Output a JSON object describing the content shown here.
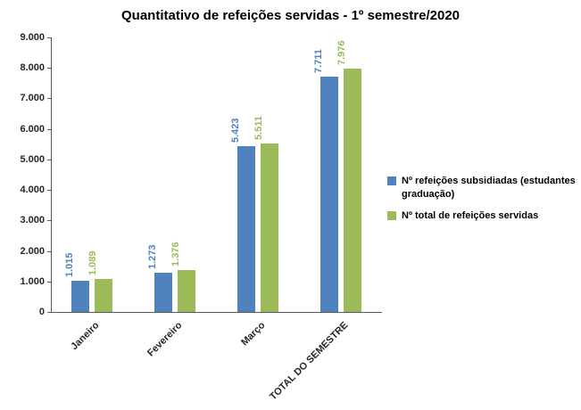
{
  "chart_data": {
    "type": "bar",
    "title": "Quantitativo de refeições servidas - 1º semestre/2020",
    "categories": [
      "Janeiro",
      "Fevereiro",
      "Março",
      "TOTAL DO SEMESTRE"
    ],
    "series": [
      {
        "name": "Nº refeições subsidiadas (estudantes graduação)",
        "color": "#4f81bd",
        "values": [
          1015,
          1273,
          5423,
          7711
        ],
        "labels": [
          "1.015",
          "1.273",
          "5.423",
          "7.711"
        ]
      },
      {
        "name": "Nº total de refeições servidas",
        "color": "#9bbb59",
        "values": [
          1089,
          1376,
          5511,
          7976
        ],
        "labels": [
          "1.089",
          "1.376",
          "5.511",
          "7.976"
        ]
      }
    ],
    "xlabel": "",
    "ylabel": "",
    "ylim": [
      0,
      9000
    ],
    "ytick_step": 1000,
    "ytick_labels": [
      "0",
      "1.000",
      "2.000",
      "3.000",
      "4.000",
      "5.000",
      "6.000",
      "7.000",
      "8.000",
      "9.000"
    ],
    "grid": false,
    "legend_position": "right"
  }
}
